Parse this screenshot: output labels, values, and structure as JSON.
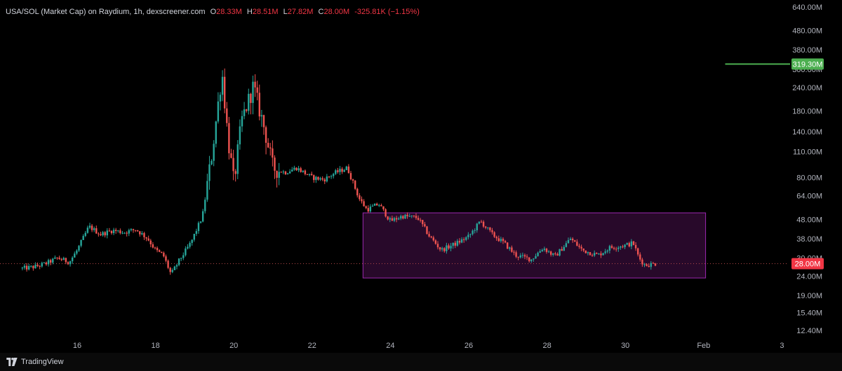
{
  "legend": {
    "title": "USA/SOL (Market Cap) on Raydium, 1h, dexscreener.com",
    "open_label": "O",
    "open": "28.33M",
    "high_label": "H",
    "high": "28.51M",
    "low_label": "L",
    "low": "27.82M",
    "close_label": "C",
    "close": "28.00M",
    "change": "-325.81K (−1.15%)"
  },
  "branding": {
    "name": "TradingView",
    "logo_icon": "tradingview-logo-icon"
  },
  "colors": {
    "up": "#26a69a",
    "down": "#ef5350",
    "target_line": "#4caf50",
    "range_box_border": "#9c27b0",
    "range_box_fill": "#2a0a2c",
    "price_line": "#b84a4a",
    "axis_text": "#b2b5be"
  },
  "chart_data": {
    "type": "candlestick",
    "pair": "USA/SOL",
    "interval": "1h",
    "scale": "log",
    "y_unit": "M",
    "y_ticks": [
      "640.00M",
      "480.00M",
      "380.00M",
      "300.00M",
      "240.00M",
      "180.00M",
      "140.00M",
      "110.00M",
      "80.00M",
      "64.00M",
      "48.00M",
      "38.00M",
      "30.00M",
      "24.00M",
      "19.00M",
      "15.40M",
      "12.40M"
    ],
    "x_ticks": [
      "16",
      "18",
      "20",
      "22",
      "24",
      "26",
      "28",
      "30",
      "Feb",
      "3"
    ],
    "x_range_days": [
      14.5,
      36.0
    ],
    "close_series": [
      [
        14.6,
        26.4
      ],
      [
        14.9,
        26.9
      ],
      [
        15.2,
        28.0
      ],
      [
        15.5,
        30.0
      ],
      [
        15.8,
        28.5
      ],
      [
        16.0,
        33.0
      ],
      [
        16.3,
        44.0
      ],
      [
        16.6,
        40.0
      ],
      [
        16.9,
        42.0
      ],
      [
        17.2,
        41.0
      ],
      [
        17.5,
        42.5
      ],
      [
        17.8,
        38.0
      ],
      [
        18.0,
        33.0
      ],
      [
        18.2,
        31.0
      ],
      [
        18.4,
        24.5
      ],
      [
        18.6,
        29.0
      ],
      [
        18.9,
        36.0
      ],
      [
        19.2,
        50.0
      ],
      [
        19.45,
        110.0
      ],
      [
        19.7,
        290.0
      ],
      [
        19.85,
        130.0
      ],
      [
        20.0,
        75.0
      ],
      [
        20.2,
        160.0
      ],
      [
        20.5,
        245.0
      ],
      [
        20.8,
        140.0
      ],
      [
        21.0,
        90.0
      ],
      [
        21.3,
        85.0
      ],
      [
        21.6,
        90.0
      ],
      [
        22.0,
        80.0
      ],
      [
        22.3,
        78.0
      ],
      [
        22.6,
        85.0
      ],
      [
        22.9,
        90.0
      ],
      [
        23.2,
        62.0
      ],
      [
        23.4,
        54.0
      ],
      [
        23.7,
        58.0
      ],
      [
        24.0,
        47.0
      ],
      [
        24.3,
        50.0
      ],
      [
        24.7,
        49.0
      ],
      [
        25.0,
        39.0
      ],
      [
        25.3,
        33.0
      ],
      [
        25.7,
        36.0
      ],
      [
        26.0,
        39.0
      ],
      [
        26.3,
        47.0
      ],
      [
        26.6,
        40.0
      ],
      [
        26.9,
        36.0
      ],
      [
        27.2,
        31.0
      ],
      [
        27.6,
        29.5
      ],
      [
        27.9,
        34.0
      ],
      [
        28.2,
        30.5
      ],
      [
        28.6,
        38.0
      ],
      [
        28.9,
        33.0
      ],
      [
        29.3,
        31.0
      ],
      [
        29.6,
        34.0
      ],
      [
        30.0,
        35.0
      ],
      [
        30.2,
        36.0
      ],
      [
        30.35,
        30.0
      ],
      [
        30.5,
        27.5
      ],
      [
        30.8,
        28.0
      ]
    ],
    "last": {
      "label": "28.00M",
      "value": 28.0,
      "color": "#f23645"
    },
    "target_line": {
      "label": "319.30M",
      "value": 319.3,
      "x_start_day": 32.55
    },
    "range_box": {
      "x_start_day": 23.3,
      "x_end_day": 32.05,
      "y_top": 52.0,
      "y_bottom": 23.5
    }
  }
}
